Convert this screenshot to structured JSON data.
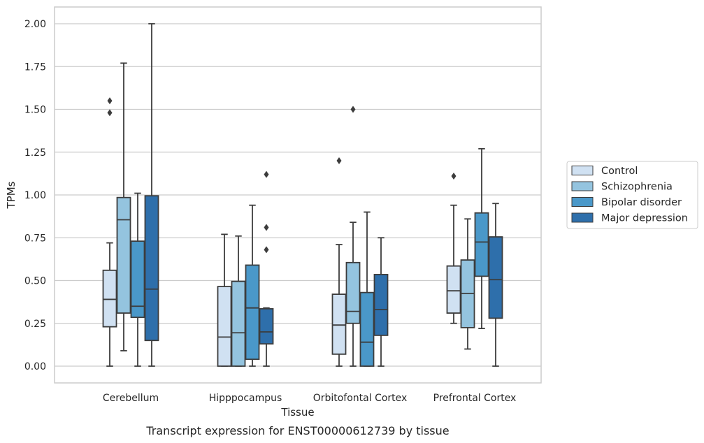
{
  "chart_data": {
    "type": "boxplot",
    "xlabel": "Tissue",
    "ylabel": "TPMs",
    "caption": "Transcript expression for ENST00000612739 by tissue",
    "ylim": [
      -0.1,
      2.1
    ],
    "yticks": [
      "0.00",
      "0.25",
      "0.50",
      "0.75",
      "1.00",
      "1.25",
      "1.50",
      "1.75",
      "2.00"
    ],
    "grid": true,
    "legend_position": "right",
    "categories": [
      "Cerebellum",
      "Hipppocampus",
      "Orbitofontal Cortex",
      "Prefrontal Cortex"
    ],
    "series": [
      {
        "name": "Control",
        "color": "#d0e1f2",
        "boxes": [
          {
            "whislo": 0.0,
            "q1": 0.23,
            "med": 0.39,
            "q3": 0.56,
            "whishi": 0.72,
            "fliers": [
              1.48,
              1.55
            ]
          },
          {
            "whislo": 0.0,
            "q1": 0.0,
            "med": 0.17,
            "q3": 0.465,
            "whishi": 0.77,
            "fliers": []
          },
          {
            "whislo": 0.0,
            "q1": 0.07,
            "med": 0.24,
            "q3": 0.42,
            "whishi": 0.71,
            "fliers": [
              1.2
            ]
          },
          {
            "whislo": 0.25,
            "q1": 0.31,
            "med": 0.44,
            "q3": 0.585,
            "whishi": 0.94,
            "fliers": [
              1.11
            ]
          }
        ]
      },
      {
        "name": "Schizophrenia",
        "color": "#94c4df",
        "boxes": [
          {
            "whislo": 0.09,
            "q1": 0.31,
            "med": 0.855,
            "q3": 0.985,
            "whishi": 1.77,
            "fliers": []
          },
          {
            "whislo": 0.0,
            "q1": 0.0,
            "med": 0.195,
            "q3": 0.495,
            "whishi": 0.76,
            "fliers": []
          },
          {
            "whislo": 0.0,
            "q1": 0.25,
            "med": 0.32,
            "q3": 0.605,
            "whishi": 0.84,
            "fliers": [
              1.5
            ]
          },
          {
            "whislo": 0.1,
            "q1": 0.225,
            "med": 0.425,
            "q3": 0.62,
            "whishi": 0.86,
            "fliers": []
          }
        ]
      },
      {
        "name": "Bipolar disorder",
        "color": "#4a98c9",
        "boxes": [
          {
            "whislo": 0.0,
            "q1": 0.285,
            "med": 0.35,
            "q3": 0.73,
            "whishi": 1.01,
            "fliers": []
          },
          {
            "whislo": 0.0,
            "q1": 0.04,
            "med": 0.34,
            "q3": 0.59,
            "whishi": 0.94,
            "fliers": []
          },
          {
            "whislo": 0.0,
            "q1": 0.0,
            "med": 0.14,
            "q3": 0.43,
            "whishi": 0.9,
            "fliers": []
          },
          {
            "whislo": 0.22,
            "q1": 0.525,
            "med": 0.725,
            "q3": 0.895,
            "whishi": 1.27,
            "fliers": []
          }
        ]
      },
      {
        "name": "Major depression",
        "color": "#2e6fab",
        "boxes": [
          {
            "whislo": 0.0,
            "q1": 0.15,
            "med": 0.45,
            "q3": 0.995,
            "whishi": 2.0,
            "fliers": []
          },
          {
            "whislo": 0.0,
            "q1": 0.13,
            "med": 0.2,
            "q3": 0.335,
            "whishi": 0.34,
            "fliers": [
              0.68,
              0.81,
              1.12
            ]
          },
          {
            "whislo": 0.0,
            "q1": 0.18,
            "med": 0.33,
            "q3": 0.535,
            "whishi": 0.75,
            "fliers": []
          },
          {
            "whislo": 0.0,
            "q1": 0.28,
            "med": 0.505,
            "q3": 0.755,
            "whishi": 0.95,
            "fliers": []
          }
        ]
      }
    ]
  }
}
